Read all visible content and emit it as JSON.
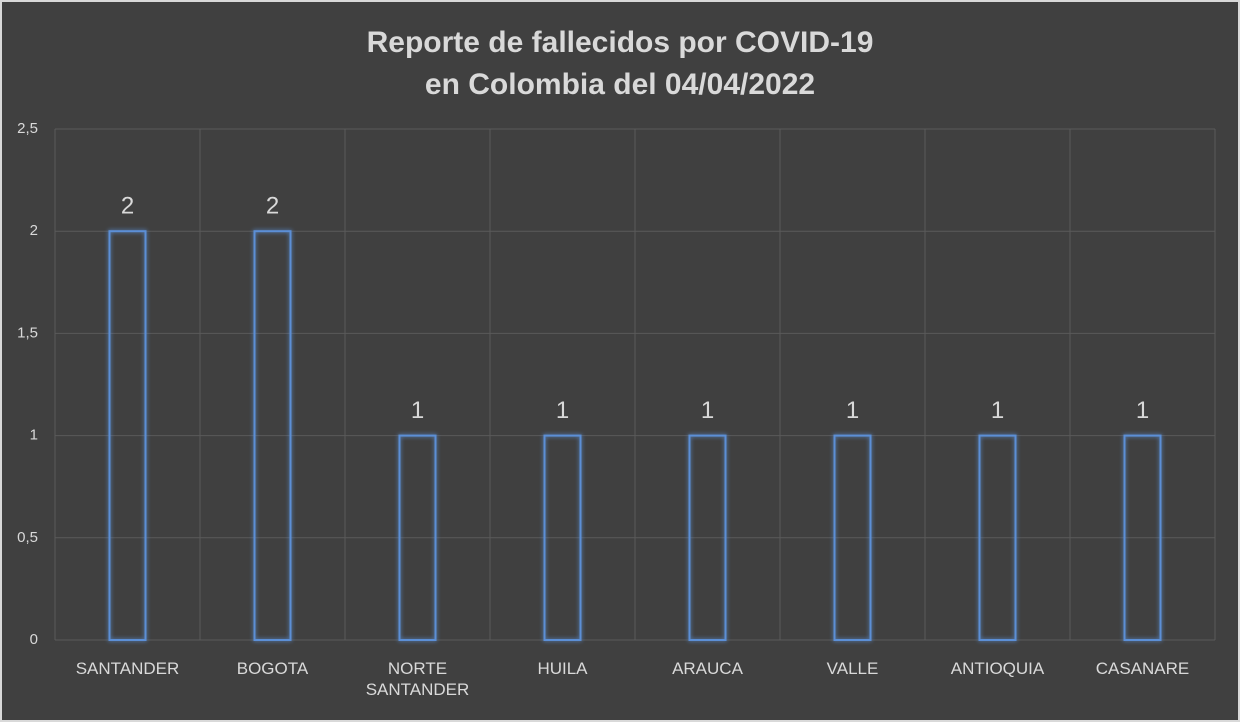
{
  "chart_data": {
    "type": "bar",
    "title": [
      "Reporte de fallecidos por COVID-19",
      "en Colombia del 04/04/2022"
    ],
    "categories": [
      "SANTANDER",
      "BOGOTA",
      "NORTE SANTANDER",
      "HUILA",
      "ARAUCA",
      "VALLE",
      "ANTIOQUIA",
      "CASANARE"
    ],
    "values": [
      2,
      2,
      1,
      1,
      1,
      1,
      1,
      1
    ],
    "color": "#5b8fd6",
    "ylim": [
      0,
      2.5
    ],
    "yticks": [
      0,
      {
        "value": 0.5,
        "label": "0,5"
      },
      1,
      {
        "value": 1.5,
        "label": "1,5"
      },
      2,
      {
        "value": 2.5,
        "label": "2,5"
      }
    ],
    "grid": true
  }
}
